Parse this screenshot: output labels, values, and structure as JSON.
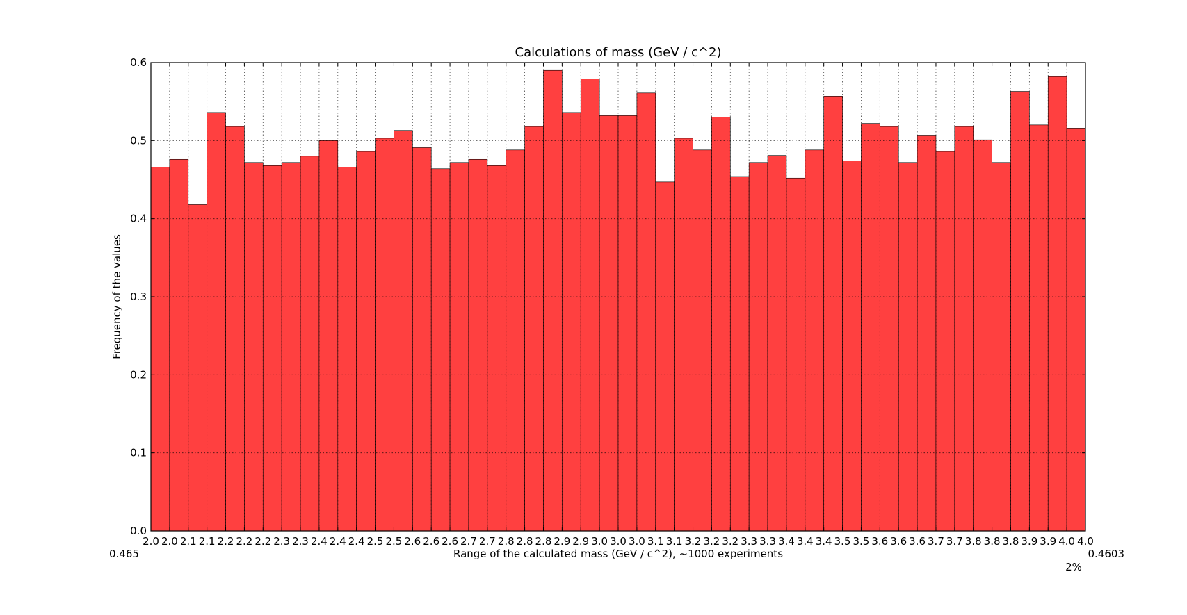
{
  "chart_data": {
    "type": "bar",
    "title": "Calculations of mass (GeV / c^2)",
    "xlabel": "",
    "ylabel": "Frequency of the values",
    "ylim": [
      0,
      0.6
    ],
    "yticks": [
      "0.0",
      "0.1",
      "0.2",
      "0.3",
      "0.4",
      "0.5",
      "0.6"
    ],
    "grid": true,
    "bar_color": "#ff4040",
    "bin_edges": [
      2.0,
      2.04,
      2.08,
      2.12,
      2.16,
      2.2,
      2.24,
      2.28,
      2.32,
      2.36,
      2.4,
      2.44,
      2.48,
      2.52,
      2.56,
      2.6,
      2.64,
      2.68,
      2.72,
      2.76,
      2.8,
      2.84,
      2.88,
      2.92,
      2.96,
      3.0,
      3.04,
      3.08,
      3.12,
      3.16,
      3.2,
      3.24,
      3.28,
      3.32,
      3.36,
      3.4,
      3.44,
      3.48,
      3.52,
      3.56,
      3.6,
      3.64,
      3.68,
      3.72,
      3.76,
      3.8,
      3.84,
      3.88,
      3.92,
      3.96,
      4.0
    ],
    "xtick_labels": [
      "2.0",
      "2.0",
      "2.1",
      "2.1",
      "2.2",
      "2.2",
      "2.2",
      "2.3",
      "2.3",
      "2.4",
      "2.4",
      "2.4",
      "2.5",
      "2.5",
      "2.6",
      "2.6",
      "2.6",
      "2.7",
      "2.7",
      "2.8",
      "2.8",
      "2.8",
      "2.9",
      "2.9",
      "3.0",
      "3.0",
      "3.0",
      "3.1",
      "3.1",
      "3.2",
      "3.2",
      "3.2",
      "3.3",
      "3.3",
      "3.4",
      "3.4",
      "3.4",
      "3.5",
      "3.5",
      "3.6",
      "3.6",
      "3.6",
      "3.7",
      "3.7",
      "3.8",
      "3.8",
      "3.8",
      "3.9",
      "3.9",
      "4.0",
      "4.0"
    ],
    "values": [
      0.466,
      0.476,
      0.418,
      0.536,
      0.518,
      0.472,
      0.468,
      0.472,
      0.48,
      0.5,
      0.466,
      0.486,
      0.503,
      0.513,
      0.491,
      0.464,
      0.472,
      0.476,
      0.468,
      0.488,
      0.518,
      0.59,
      0.536,
      0.579,
      0.532,
      0.532,
      0.561,
      0.447,
      0.503,
      0.488,
      0.53,
      0.454,
      0.472,
      0.481,
      0.452,
      0.488,
      0.557,
      0.474,
      0.522,
      0.518,
      0.472,
      0.507,
      0.486,
      0.518,
      0.501,
      0.472,
      0.563,
      0.52,
      0.582,
      0.516
    ],
    "overlapping_text": {
      "start": "0.465",
      "middle": "Range of the calculated mass (GeV / c^2), ~1000 experiments",
      "end": "0.4603",
      "second_line": "2%"
    }
  }
}
